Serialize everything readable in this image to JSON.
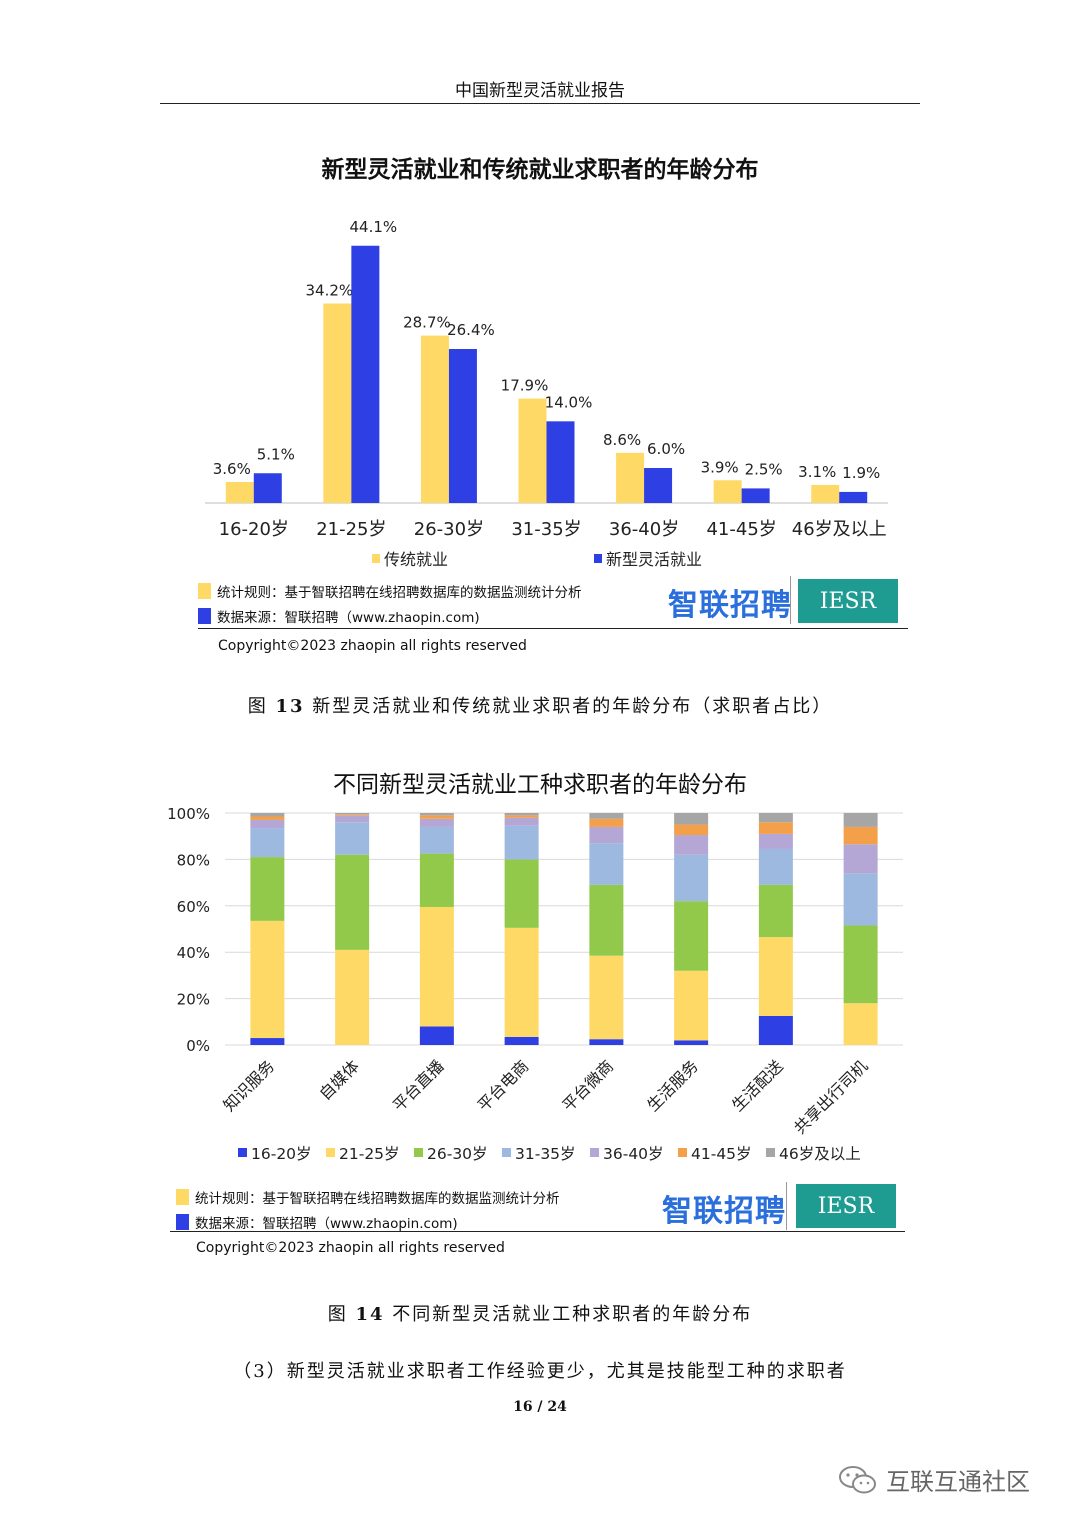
{
  "header": {
    "title": "中国新型灵活就业报告"
  },
  "chart1": {
    "footer": {
      "rule_label": "统计规则：基于智联招聘在线招聘数据库的数据监测统计分析",
      "source_label": "数据来源：智联招聘（www.zhaopin.com)"
    },
    "copyright": "Copyright©2023 zhaopin all rights reserved",
    "caption_prefix": "图",
    "caption_num": "13",
    "caption_text": "新型灵活就业和传统就业求职者的年龄分布（求职者占比）"
  },
  "chart2": {
    "footer": {
      "rule_label": "统计规则：基于智联招聘在线招聘数据库的数据监测统计分析",
      "source_label": "数据来源：智联招聘（www.zhaopin.com)"
    },
    "copyright": "Copyright©2023 zhaopin all rights reserved",
    "caption_prefix": "图",
    "caption_num": "14",
    "caption_text": "不同新型灵活就业工种求职者的年龄分布"
  },
  "logos": {
    "zhilian": "智联招聘",
    "iesr": "IESR"
  },
  "section_heading": "（3）新型灵活就业求职者工作经验更少，尤其是技能型工种的求职者",
  "page_number": "16 / 24",
  "watermark": "互联互通社区",
  "colors": {
    "yellow": "#FFD966",
    "blue": "#2E3FE3",
    "green": "#92C94B",
    "lightblue": "#9DB9E0",
    "purple": "#B4A7D6",
    "orange": "#F4A04A",
    "gray": "#A6A6A6",
    "logo_blue": "#2a6fdb",
    "logo_teal": "#1f9c92"
  },
  "chart_data": [
    {
      "type": "bar",
      "title": "新型灵活就业和传统就业求职者的年龄分布",
      "categories": [
        "16-20岁",
        "21-25岁",
        "26-30岁",
        "31-35岁",
        "36-40岁",
        "41-45岁",
        "46岁及以上"
      ],
      "series": [
        {
          "name": "传统就业",
          "color": "#FFD966",
          "values": [
            3.6,
            34.2,
            28.7,
            17.9,
            8.6,
            3.9,
            3.1
          ],
          "labels": [
            "3.6%",
            "34.2%",
            "28.7%",
            "17.9%",
            "8.6%",
            "3.9%",
            "3.1%"
          ]
        },
        {
          "name": "新型灵活就业",
          "color": "#2E3FE3",
          "values": [
            5.1,
            44.1,
            26.4,
            14.0,
            6.0,
            2.5,
            1.9
          ],
          "labels": [
            "5.1%",
            "44.1%",
            "26.4%",
            "14.0%",
            "6.0%",
            "2.5%",
            "1.9%"
          ]
        }
      ],
      "ylim": [
        0,
        48
      ],
      "grid": false,
      "legend": "bottom"
    },
    {
      "type": "bar",
      "stacked": true,
      "title": "不同新型灵活就业工种求职者的年龄分布",
      "categories": [
        "知识服务",
        "自媒体",
        "平台直播",
        "平台电商",
        "平台微商",
        "生活服务",
        "生活配送",
        "共享出行司机"
      ],
      "y_ticks": [
        "0%",
        "20%",
        "40%",
        "60%",
        "80%",
        "100%"
      ],
      "ylim": [
        0,
        100
      ],
      "grid": true,
      "legend": "bottom",
      "series": [
        {
          "name": "16-20岁",
          "color": "#2E3FE3",
          "values": [
            3,
            0,
            8,
            3.5,
            2.5,
            2,
            12.5,
            0
          ]
        },
        {
          "name": "21-25岁",
          "color": "#FFD966",
          "values": [
            50.5,
            41,
            51.5,
            47,
            36,
            30,
            34,
            18
          ]
        },
        {
          "name": "26-30岁",
          "color": "#92C94B",
          "values": [
            27.5,
            41,
            23,
            29.5,
            30.5,
            30,
            22.5,
            33.5
          ]
        },
        {
          "name": "31-35岁",
          "color": "#9DB9E0",
          "values": [
            12.5,
            14,
            11.5,
            14.5,
            18,
            20,
            15.5,
            22.5
          ]
        },
        {
          "name": "36-40岁",
          "color": "#B4A7D6",
          "values": [
            3.5,
            3,
            3.5,
            3.5,
            7,
            8.5,
            6.5,
            12.5
          ]
        },
        {
          "name": "41-45岁",
          "color": "#F4A04A",
          "values": [
            1.5,
            0.5,
            1.5,
            1,
            3.5,
            4.5,
            5,
            7.5
          ]
        },
        {
          "name": "46岁及以上",
          "color": "#A6A6A6",
          "values": [
            1.5,
            0.5,
            1,
            1,
            2.5,
            5,
            4,
            6
          ]
        }
      ]
    }
  ]
}
